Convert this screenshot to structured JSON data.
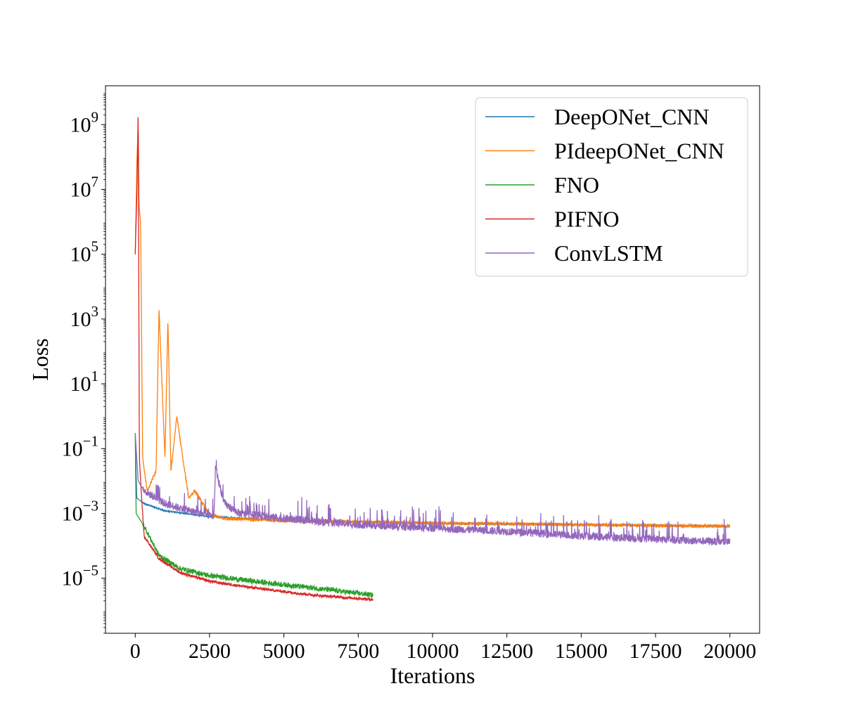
{
  "chart_data": {
    "type": "line",
    "title": "",
    "xlabel": "Iterations",
    "ylabel": "Loss",
    "yscale": "log",
    "xlim": [
      -1000,
      21000
    ],
    "ylim_log10": [
      -6.7,
      10.2
    ],
    "grid": false,
    "legend_position": "top-right",
    "x_ticks": [
      0,
      2500,
      5000,
      7500,
      10000,
      12500,
      15000,
      17500,
      20000
    ],
    "x_tick_labels": [
      "0",
      "2500",
      "5000",
      "7500",
      "10000",
      "12500",
      "15000",
      "17500",
      "20000"
    ],
    "y_ticks": [
      {
        "base": "10",
        "exp": "9",
        "log": 9
      },
      {
        "base": "10",
        "exp": "7",
        "log": 7
      },
      {
        "base": "10",
        "exp": "5",
        "log": 5
      },
      {
        "base": "10",
        "exp": "3",
        "log": 3
      },
      {
        "base": "10",
        "exp": "1",
        "log": 1
      },
      {
        "base": "10",
        "exp": "−1",
        "log": -1
      },
      {
        "base": "10",
        "exp": "−3",
        "log": -3
      },
      {
        "base": "10",
        "exp": "−5",
        "log": -5
      }
    ],
    "series": [
      {
        "name": "DeepONet_CNN",
        "color": "#1f77b4",
        "points": [
          [
            0,
            0.3
          ],
          [
            50,
            0.003
          ],
          [
            300,
            0.002
          ],
          [
            1000,
            0.0012
          ],
          [
            2500,
            0.0008
          ],
          [
            5000,
            0.0006
          ],
          [
            10000,
            0.0005
          ],
          [
            15000,
            0.00045
          ],
          [
            20000,
            0.0004
          ]
        ],
        "noise_log10": 0.02
      },
      {
        "name": "PIdeepONet_CNN",
        "color": "#ff7f0e",
        "points": [
          [
            0,
            100000
          ],
          [
            60,
            100000000
          ],
          [
            100,
            1000000000
          ],
          [
            130,
            3000000
          ],
          [
            180,
            1000000
          ],
          [
            250,
            0.05
          ],
          [
            400,
            0.005
          ],
          [
            700,
            0.02
          ],
          [
            800,
            2000
          ],
          [
            900,
            10
          ],
          [
            1000,
            0.05
          ],
          [
            1100,
            1000
          ],
          [
            1200,
            0.02
          ],
          [
            1400,
            1
          ],
          [
            1600,
            0.05
          ],
          [
            1800,
            0.003
          ],
          [
            2000,
            0.005
          ],
          [
            2500,
            0.0009
          ],
          [
            3000,
            0.0007
          ],
          [
            5000,
            0.0006
          ],
          [
            7500,
            0.00055
          ],
          [
            10000,
            0.0005
          ],
          [
            12500,
            0.00048
          ],
          [
            15000,
            0.00045
          ],
          [
            17500,
            0.00042
          ],
          [
            20000,
            0.0004
          ]
        ],
        "noise_log10": 0.05
      },
      {
        "name": "FNO",
        "color": "#2ca02c",
        "points": [
          [
            0,
            0.3
          ],
          [
            30,
            0.001
          ],
          [
            300,
            0.0004
          ],
          [
            800,
            5e-05
          ],
          [
            1500,
            2e-05
          ],
          [
            2500,
            1.2e-05
          ],
          [
            4000,
            8e-06
          ],
          [
            6000,
            5e-06
          ],
          [
            8000,
            3e-06
          ]
        ],
        "noise_log10": 0.08
      },
      {
        "name": "PIFNO",
        "color": "#d62728",
        "points": [
          [
            0,
            100000
          ],
          [
            60,
            10000000
          ],
          [
            100,
            3000000000
          ],
          [
            140,
            0.05
          ],
          [
            200,
            0.005
          ],
          [
            300,
            0.0002
          ],
          [
            800,
            4e-05
          ],
          [
            1500,
            1.5e-05
          ],
          [
            2500,
            8e-06
          ],
          [
            4000,
            5e-06
          ],
          [
            6000,
            3e-06
          ],
          [
            8000,
            2.2e-06
          ]
        ],
        "noise_log10": 0.04
      },
      {
        "name": "ConvLSTM",
        "color": "#9467bd",
        "points": [
          [
            0,
            0.3
          ],
          [
            100,
            0.01
          ],
          [
            300,
            0.005
          ],
          [
            1000,
            0.002
          ],
          [
            2000,
            0.0011
          ],
          [
            2650,
            0.0008
          ],
          [
            2700,
            0.03
          ],
          [
            2800,
            0.01
          ],
          [
            3000,
            0.002
          ],
          [
            3500,
            0.001
          ],
          [
            5000,
            0.0007
          ],
          [
            7500,
            0.00045
          ],
          [
            10000,
            0.00035
          ],
          [
            12500,
            0.00028
          ],
          [
            15000,
            0.0002
          ],
          [
            17500,
            0.00016
          ],
          [
            20000,
            0.00013
          ]
        ],
        "noise_log10": 0.12,
        "spike_log10": 0.6
      }
    ]
  }
}
